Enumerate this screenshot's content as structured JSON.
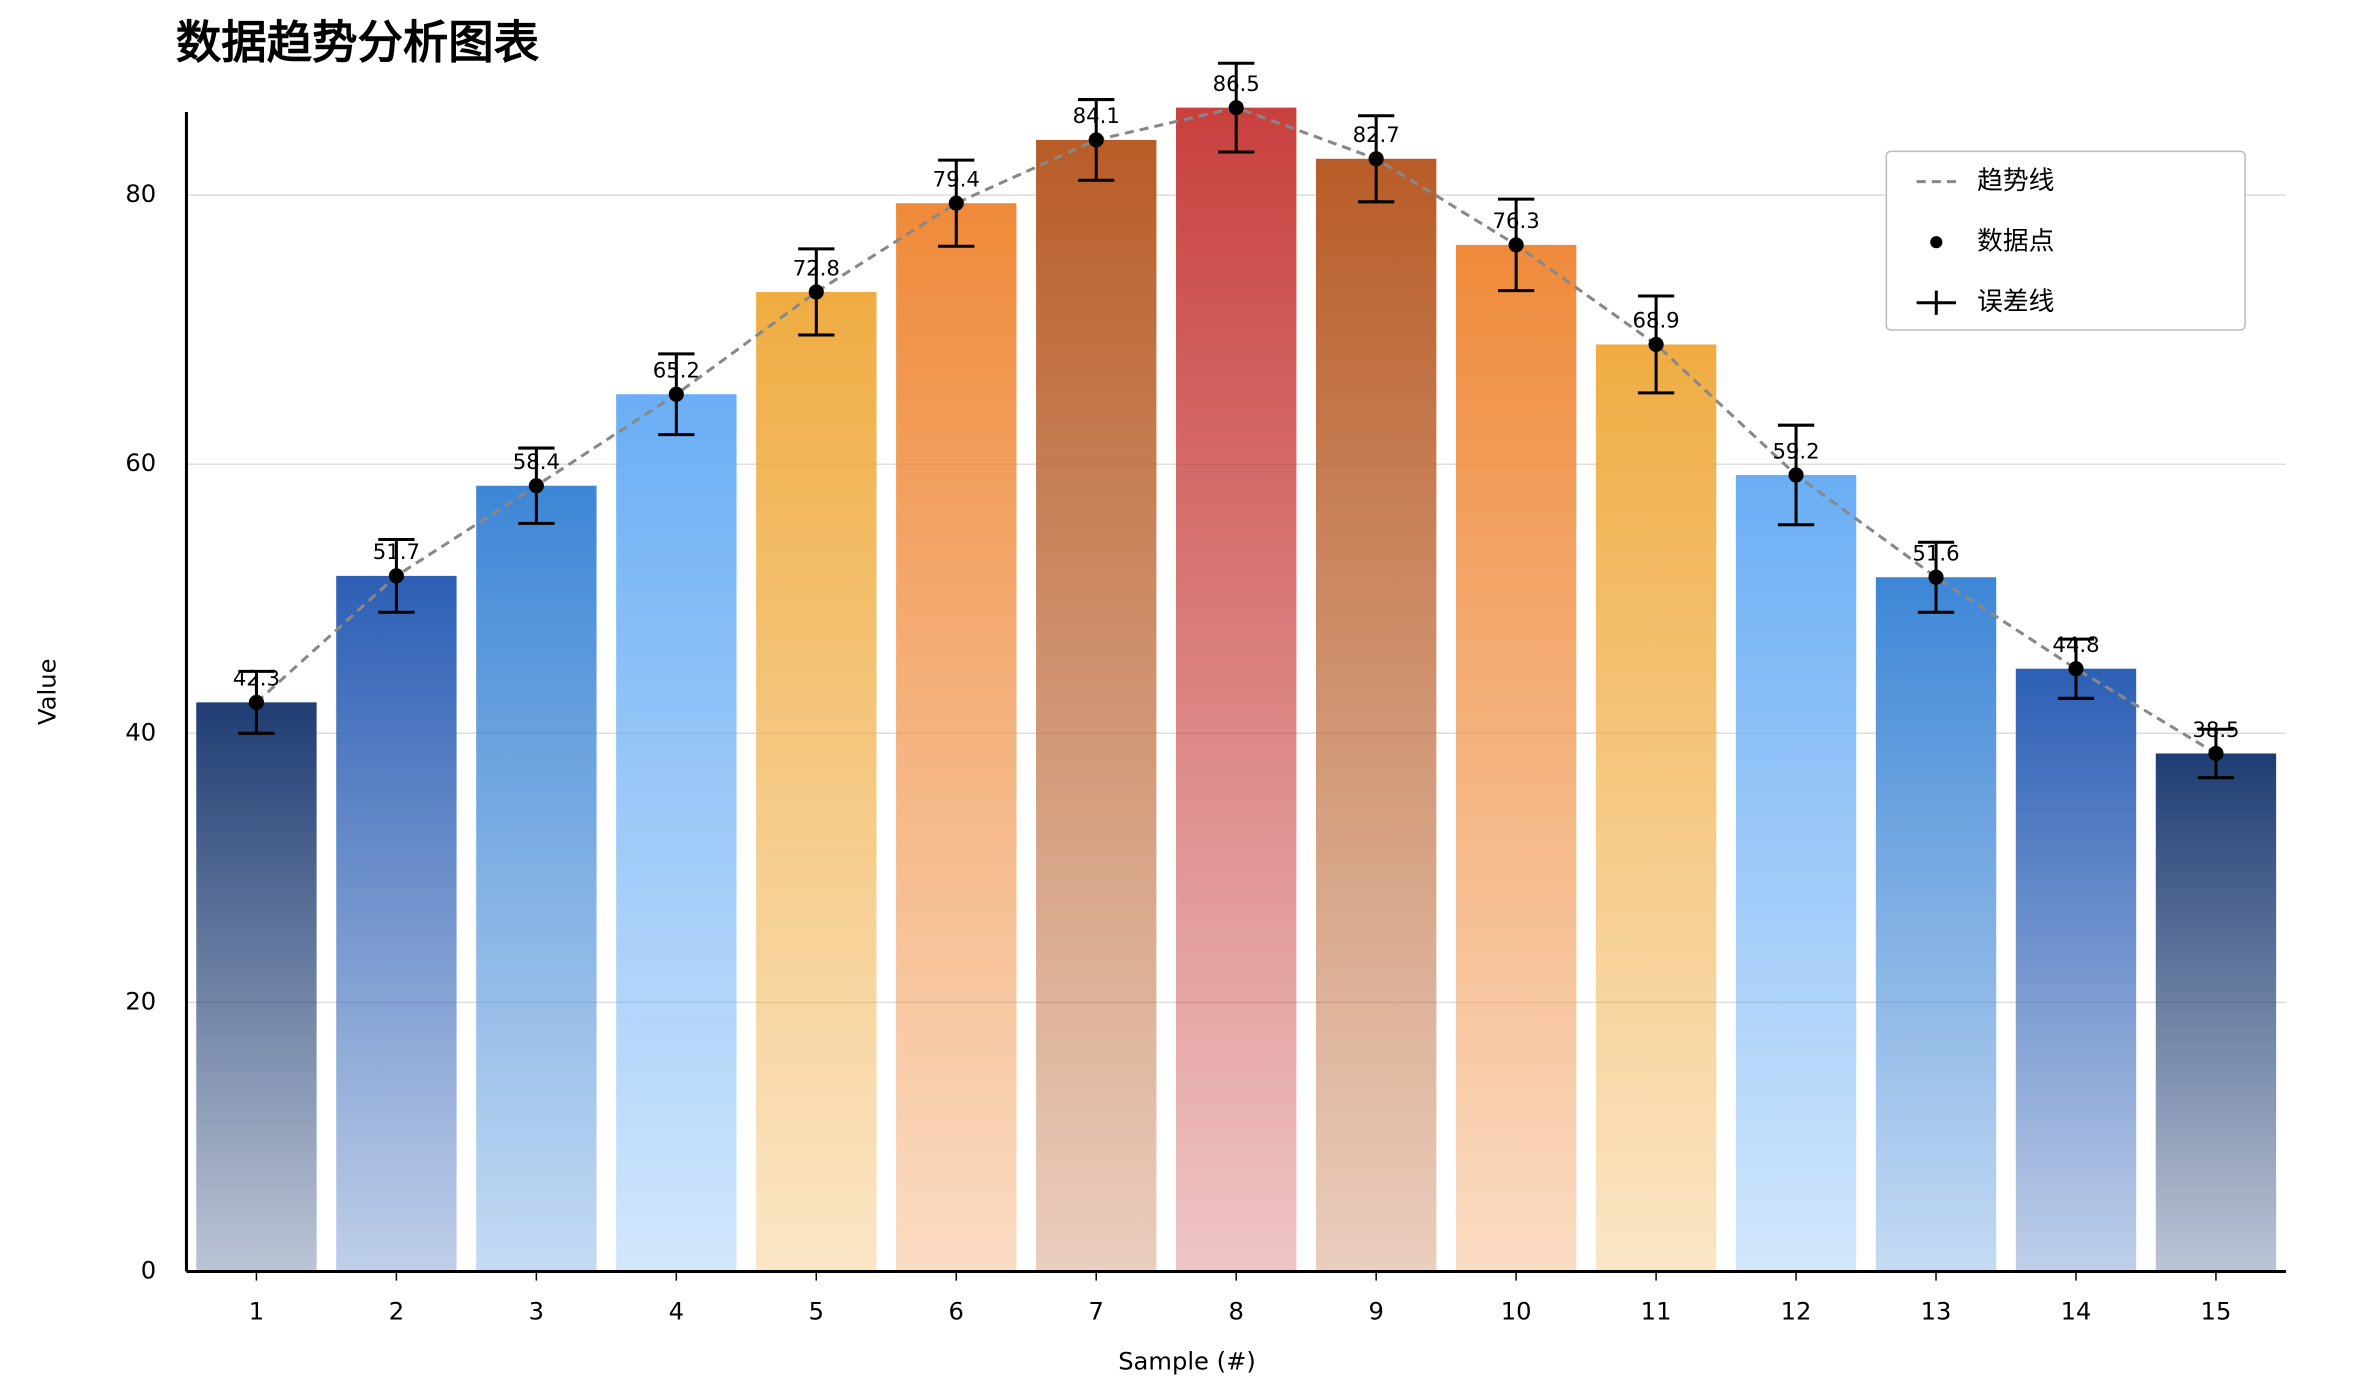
{
  "chart_data": {
    "type": "bar",
    "title": "数据趋势分析图表",
    "x_label": "Sample (#)",
    "y_label": "Value",
    "categories": [
      "1",
      "2",
      "3",
      "4",
      "5",
      "6",
      "7",
      "8",
      "9",
      "10",
      "11",
      "12",
      "13",
      "14",
      "15"
    ],
    "values": [
      42.3,
      51.7,
      58.4,
      65.2,
      72.8,
      79.4,
      84.1,
      86.5,
      82.7,
      76.3,
      68.9,
      59.2,
      51.6,
      44.8,
      38.5
    ],
    "errors": [
      2.3,
      2.7,
      2.8,
      3,
      3.2,
      3.2,
      3,
      3.3,
      3.2,
      3.4,
      3.6,
      3.7,
      2.6,
      2.2,
      1.8
    ],
    "colors": [
      "#1f3d73",
      "#2c5fb5",
      "#3d86d6",
      "#6aaef5",
      "#f0ac42",
      "#ef8a3a",
      "#b85c27",
      "#c8403e",
      "#b85c27",
      "#ef8a3a",
      "#f0ac42",
      "#6aaef5",
      "#3d86d6",
      "#2c5fb5",
      "#1f3d73"
    ],
    "legend_entries": [
      "趋势线",
      "数据点",
      "误差线"
    ],
    "legend_position": "upper right",
    "ylim": [
      0,
      90
    ],
    "yticks": [
      0,
      20,
      40,
      60,
      80
    ],
    "grid": true
  }
}
